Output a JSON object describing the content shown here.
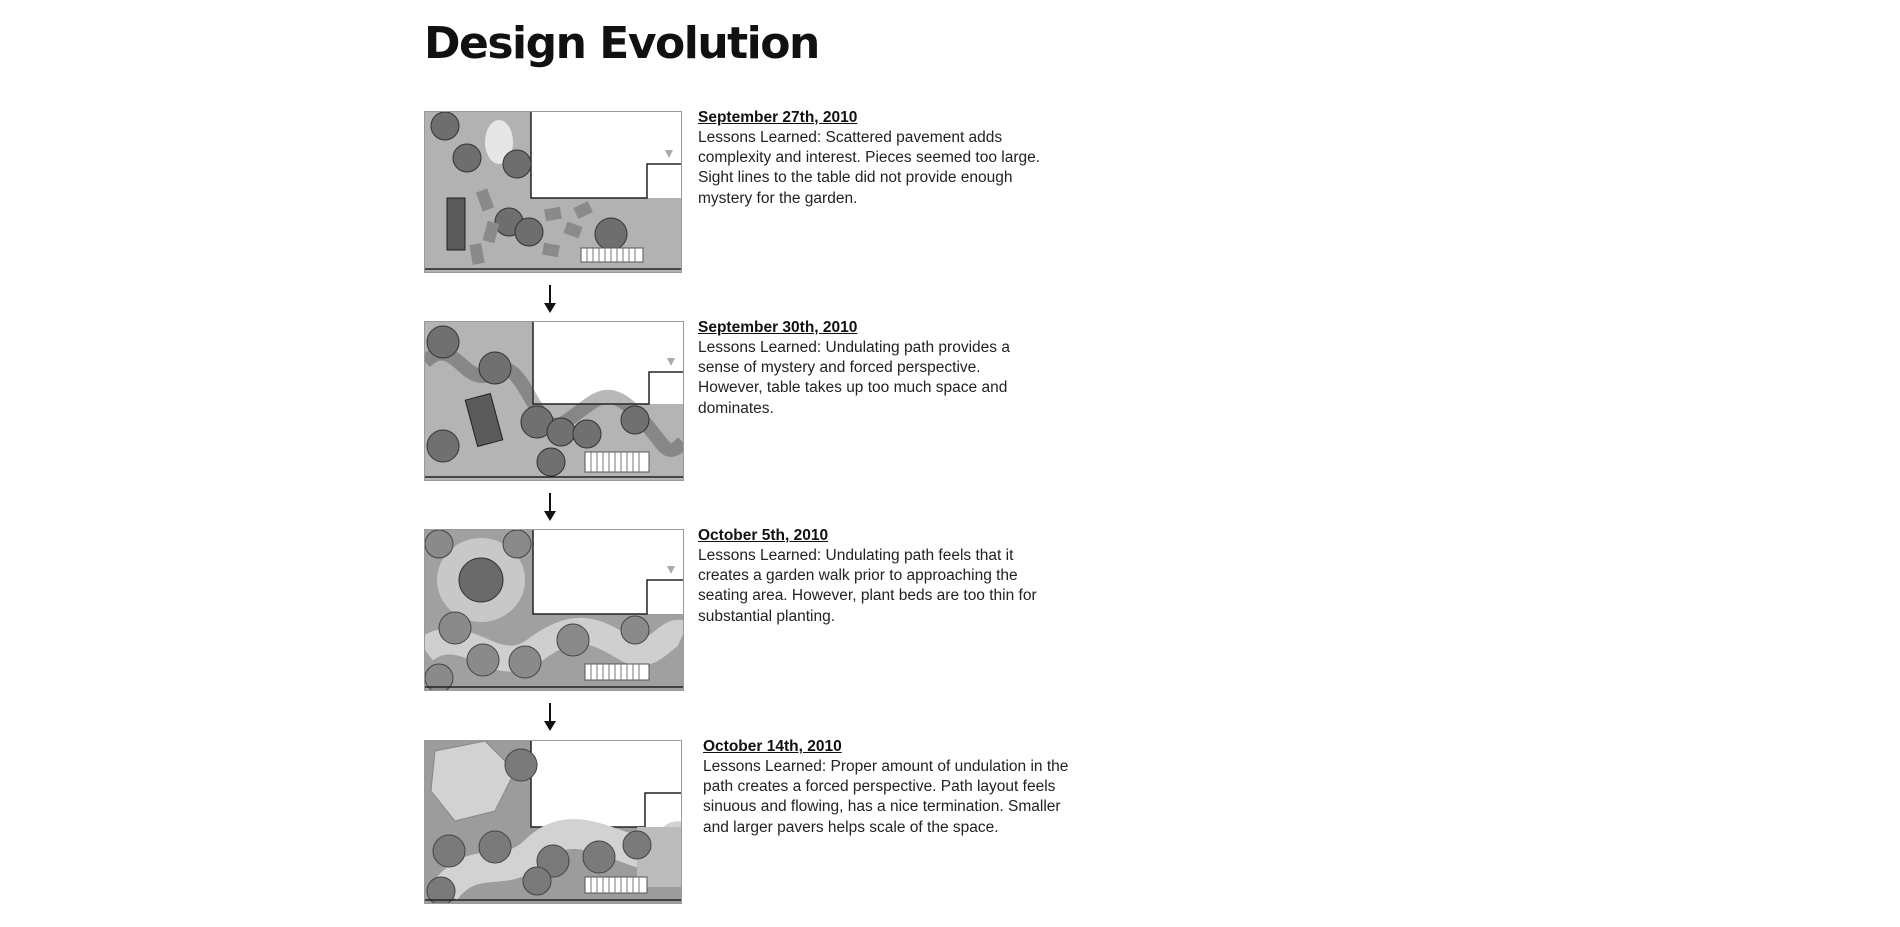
{
  "page": {
    "title": "Design Evolution"
  },
  "entries": [
    {
      "date": "September 27th, 2010",
      "text": "Lessons Learned: Scattered pavement adds complexity and interest. Pieces seemed too large. Sight lines to the table did not provide enough mystery for the garden."
    },
    {
      "date": "September 30th, 2010",
      "text": "Lessons Learned: Undulating path provides a sense of mystery and forced perspective. However, table takes up too much space and dominates."
    },
    {
      "date": "October 5th, 2010",
      "text": "Lessons Learned: Undulating path feels that it creates a garden walk prior to approaching the seating area. However, plant beds are too thin for substantial planting."
    },
    {
      "date": "October 14th, 2010",
      "text": "Lessons Learned: Proper amount of undulation in the path creates a forced perspective. Path layout feels sinuous and flowing, has a nice termination. Smaller and larger pavers helps scale of the space."
    }
  ],
  "icons": {
    "arrow": "arrow-down-icon"
  }
}
